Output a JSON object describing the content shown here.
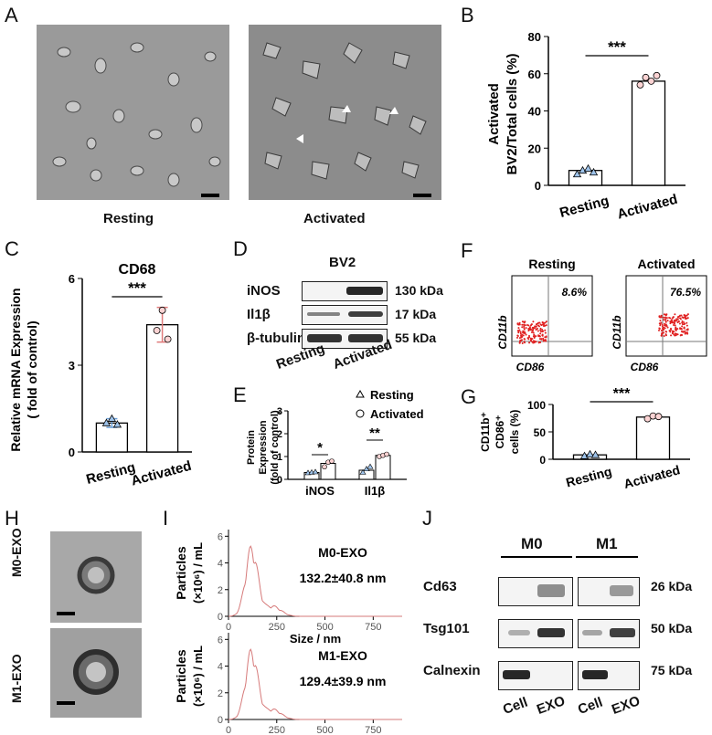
{
  "panels": {
    "A": {
      "letter": "A",
      "left_label": "Resting",
      "right_label": "Activated"
    },
    "B": {
      "letter": "B"
    },
    "C": {
      "letter": "C"
    },
    "D": {
      "letter": "D",
      "title": "BV2",
      "rows": [
        {
          "name": "iNOS",
          "kda": "130 kDa"
        },
        {
          "name": "Il1β",
          "kda": "17 kDa"
        },
        {
          "name": "β-tubulin",
          "kda": "55 kDa"
        }
      ],
      "lanes": [
        "Resting",
        "Activated"
      ]
    },
    "E": {
      "letter": "E"
    },
    "F": {
      "letter": "F",
      "plots": [
        {
          "title": "Resting",
          "pct": "8.6%"
        },
        {
          "title": "Activated",
          "pct": "76.5%"
        }
      ],
      "ylabel": "CD11b",
      "xlabel": "CD86"
    },
    "G": {
      "letter": "G"
    },
    "H": {
      "letter": "H",
      "labels": [
        "M0-EXO",
        "M1-EXO"
      ]
    },
    "I": {
      "letter": "I"
    },
    "J": {
      "letter": "J",
      "groups": [
        "M0",
        "M1"
      ],
      "rows": [
        {
          "name": "Cd63",
          "kda": "26 kDa"
        },
        {
          "name": "Tsg101",
          "kda": "50 kDa"
        },
        {
          "name": "Calnexin",
          "kda": "75 kDa"
        }
      ],
      "lanes": [
        "Cell",
        "EXO",
        "Cell",
        "EXO"
      ]
    }
  },
  "chart_data": [
    {
      "id": "B",
      "type": "bar",
      "categories": [
        "Resting",
        "Activated"
      ],
      "values": [
        8,
        56
      ],
      "points": [
        [
          6,
          8,
          9,
          7
        ],
        [
          54,
          58,
          56,
          59
        ]
      ],
      "ylabel": "Activated BV2/Total cells (%)",
      "ylim": [
        0,
        80
      ],
      "yticks": [
        0,
        20,
        40,
        60,
        80
      ],
      "significance": "***",
      "colors": {
        "Resting": "#6a9fd8",
        "Activated": "#e07a7a"
      }
    },
    {
      "id": "C",
      "type": "bar",
      "title": "CD68",
      "categories": [
        "Resting",
        "Activated"
      ],
      "values": [
        1.0,
        4.4
      ],
      "errors": [
        0.15,
        0.6
      ],
      "points": [
        [
          1.0,
          1.15,
          0.95
        ],
        [
          4.2,
          4.9,
          3.9
        ]
      ],
      "ylabel": "Relative mRNA Expression ( fold of control)",
      "ylim": [
        0,
        6
      ],
      "yticks": [
        0,
        3,
        6
      ],
      "significance": "***"
    },
    {
      "id": "E",
      "type": "bar",
      "categories": [
        "iNOS",
        "Il1β"
      ],
      "series": [
        {
          "name": "Resting",
          "values": [
            0.3,
            0.4
          ],
          "points": [
            [
              0.28,
              0.3,
              0.32
            ],
            [
              0.3,
              0.45,
              0.55
            ]
          ]
        },
        {
          "name": "Activated",
          "values": [
            0.7,
            1.05
          ],
          "points": [
            [
              0.55,
              0.75,
              0.8
            ],
            [
              1.0,
              1.05,
              1.1
            ]
          ]
        }
      ],
      "ylabel": "Protein Expression (fold of control)",
      "ylim": [
        0,
        3
      ],
      "yticks": [
        0,
        1,
        2,
        3
      ],
      "significance": [
        "*",
        "**"
      ]
    },
    {
      "id": "G",
      "type": "bar",
      "categories": [
        "Resting",
        "Activated"
      ],
      "values": [
        8,
        77
      ],
      "points": [
        [
          6,
          9,
          8
        ],
        [
          74,
          79,
          78
        ]
      ],
      "ylabel": "CD11b+ CD86+ cells (%)",
      "ylim": [
        0,
        100
      ],
      "yticks": [
        0,
        50,
        100
      ],
      "significance": "***"
    },
    {
      "id": "I",
      "type": "line",
      "series": [
        {
          "name": "M0-EXO",
          "annotation": "132.2±40.8 nm"
        },
        {
          "name": "M1-EXO",
          "annotation": "129.4±39.9 nm"
        }
      ],
      "xlabel": "Size / nm",
      "ylabel": "Particles (×10⁶) / mL",
      "xlim": [
        0,
        900
      ],
      "xticks": [
        0,
        250,
        500,
        750
      ],
      "yticks_top": [
        0,
        2,
        4,
        6
      ],
      "yticks_bottom": [
        0,
        2,
        4,
        6
      ]
    }
  ]
}
